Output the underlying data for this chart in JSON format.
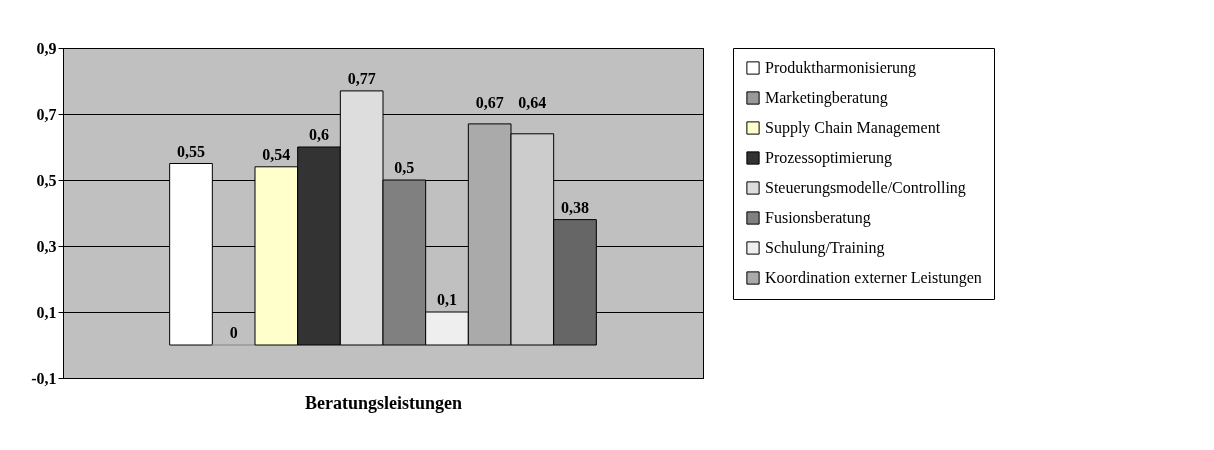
{
  "chart_data": {
    "type": "bar",
    "xlabel": "Beratungsleistungen",
    "categories": [
      null
    ],
    "series": [
      {
        "name": "Produktharmonisierung",
        "color": "#ffffff",
        "values": [
          0.55
        ],
        "value_labels": [
          "0,55"
        ]
      },
      {
        "name": "Marketingberatung",
        "color": "#999999",
        "values": [
          0
        ],
        "value_labels": [
          "0"
        ]
      },
      {
        "name": "Supply Chain Management",
        "color": "#ffffcc",
        "values": [
          0.54
        ],
        "value_labels": [
          "0,54"
        ]
      },
      {
        "name": "Prozessoptimierung",
        "color": "#333333",
        "values": [
          0.6
        ],
        "value_labels": [
          "0,6"
        ]
      },
      {
        "name": "Steuerungsmodelle/Controlling",
        "color": "#dddddd",
        "values": [
          0.77
        ],
        "value_labels": [
          "0,77"
        ]
      },
      {
        "name": "Fusionsberatung",
        "color": "#808080",
        "values": [
          0.5
        ],
        "value_labels": [
          "0,5"
        ]
      },
      {
        "name": "Schulung/Training",
        "color": "#eeeeee",
        "values": [
          0.1
        ],
        "value_labels": [
          "0,1"
        ]
      },
      {
        "name": "Koordination externer Leistungen",
        "color": "#aaaaaa",
        "values": [
          0.67
        ],
        "value_labels": [
          "0,67"
        ]
      },
      {
        "color": "#cccccc",
        "values": [
          0.64
        ],
        "value_labels": [
          "0,64"
        ]
      },
      {
        "color": "#666666",
        "values": [
          0.38
        ],
        "value_labels": [
          "0,38"
        ]
      }
    ],
    "ylim": [
      -0.1,
      0.9
    ],
    "yticks": [
      {
        "value": -0.1,
        "label": "-0,1"
      },
      {
        "value": 0.1,
        "label": "0,1"
      },
      {
        "value": 0.3,
        "label": "0,3"
      },
      {
        "value": 0.5,
        "label": "0,5"
      },
      {
        "value": 0.7,
        "label": "0,7"
      },
      {
        "value": 0.9,
        "label": "0,9"
      }
    ],
    "grid": "y",
    "legend": "right"
  }
}
